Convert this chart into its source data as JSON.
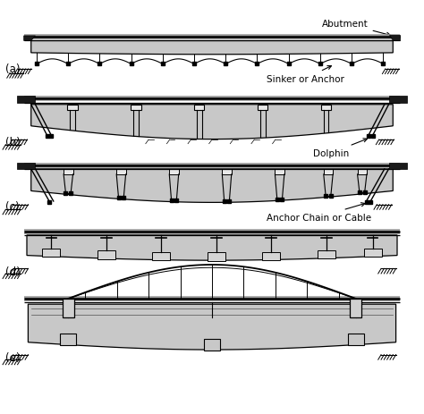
{
  "background_color": "#ffffff",
  "bridge_fill": "#c8c8c8",
  "bridge_fill2": "#b8b8b8",
  "edge_c": "#000000",
  "road_gray": "#999999",
  "abut_dark": "#1a1a1a",
  "labels": [
    "(a)",
    "(b)",
    "(c)",
    "(d)",
    "(e)"
  ],
  "ann_abutment": "Abutment",
  "ann_sinker": "Sinker or Anchor",
  "ann_dolphin": "Dolphin",
  "ann_anchor": "Anchor Chain or Cable",
  "fig_w": 4.74,
  "fig_h": 4.64,
  "dpi": 100
}
